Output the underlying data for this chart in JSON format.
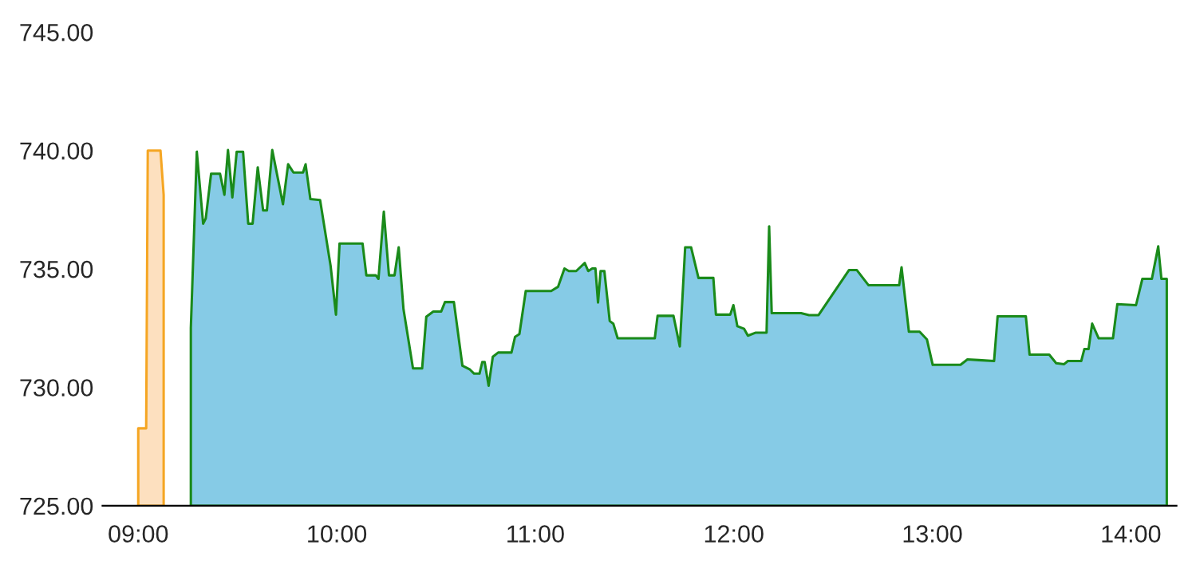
{
  "chart_data": {
    "type": "area",
    "xlim": [
      8.82,
      14.23
    ],
    "ylim": [
      725,
      745
    ],
    "xticks": [
      {
        "value": 9,
        "label": "09:00"
      },
      {
        "value": 10,
        "label": "10:00"
      },
      {
        "value": 11,
        "label": "11:00"
      },
      {
        "value": 12,
        "label": "12:00"
      },
      {
        "value": 13,
        "label": "13:00"
      },
      {
        "value": 14,
        "label": "14:00"
      }
    ],
    "yticks": [
      {
        "value": 725,
        "label": "725.00"
      },
      {
        "value": 730,
        "label": "730.00"
      },
      {
        "value": 735,
        "label": "735.00"
      },
      {
        "value": 740,
        "label": "740.00"
      },
      {
        "value": 745,
        "label": "745.00"
      }
    ],
    "grid": false,
    "legend": false,
    "series": [
      {
        "color": "#f5a623",
        "x": [
          9.0,
          9.04,
          9.048,
          9.112,
          9.128
        ],
        "values": [
          728.27,
          728.27,
          740.0,
          740.0,
          738.13
        ]
      },
      {
        "color": "#1a8a1a",
        "x": [
          9.265,
          9.295,
          9.327,
          9.34,
          9.367,
          9.412,
          9.434,
          9.452,
          9.474,
          9.496,
          9.528,
          9.554,
          9.576,
          9.602,
          9.629,
          9.648,
          9.675,
          9.729,
          9.755,
          9.782,
          9.83,
          9.843,
          9.867,
          9.916,
          9.969,
          9.996,
          10.014,
          10.13,
          10.149,
          10.197,
          10.21,
          10.237,
          10.263,
          10.291,
          10.312,
          10.336,
          10.384,
          10.43,
          10.451,
          10.486,
          10.526,
          10.545,
          10.59,
          10.633,
          10.671,
          10.692,
          10.719,
          10.733,
          10.745,
          10.765,
          10.786,
          10.813,
          10.88,
          10.898,
          10.92,
          10.952,
          11.08,
          11.115,
          11.147,
          11.169,
          11.206,
          11.249,
          11.267,
          11.287,
          11.303,
          11.316,
          11.329,
          11.348,
          11.375,
          11.393,
          11.415,
          11.602,
          11.616,
          11.696,
          11.728,
          11.755,
          11.785,
          11.822,
          11.897,
          11.91,
          11.982,
          11.998,
          12.018,
          12.052,
          12.071,
          12.111,
          12.165,
          12.178,
          12.191,
          12.339,
          12.379,
          12.427,
          12.58,
          12.62,
          12.679,
          12.833,
          12.845,
          12.882,
          12.936,
          12.973,
          13.002,
          13.142,
          13.177,
          13.235,
          13.311,
          13.329,
          13.471,
          13.49,
          13.589,
          13.624,
          13.664,
          13.683,
          13.75,
          13.766,
          13.787,
          13.805,
          13.838,
          13.91,
          13.932,
          14.026,
          14.058,
          14.106,
          14.138,
          14.154,
          14.181
        ],
        "values": [
          732.51,
          739.95,
          736.91,
          737.13,
          739.02,
          739.02,
          738.13,
          740.02,
          738.02,
          739.95,
          739.95,
          736.91,
          736.91,
          739.29,
          737.47,
          737.47,
          740.02,
          737.73,
          739.42,
          739.07,
          739.07,
          739.42,
          737.95,
          737.91,
          735.13,
          733.07,
          736.07,
          736.07,
          734.73,
          734.73,
          734.58,
          737.42,
          734.73,
          734.73,
          735.91,
          733.31,
          730.8,
          730.8,
          732.98,
          733.2,
          733.2,
          733.6,
          733.6,
          730.91,
          730.75,
          730.58,
          730.58,
          731.07,
          731.07,
          730.07,
          731.29,
          731.47,
          731.47,
          732.13,
          732.25,
          734.07,
          734.07,
          734.25,
          735.02,
          734.91,
          734.91,
          735.25,
          734.91,
          735.02,
          735.02,
          733.58,
          734.91,
          734.91,
          732.8,
          732.69,
          732.07,
          732.07,
          733.02,
          733.02,
          731.73,
          735.91,
          735.91,
          734.62,
          734.62,
          733.07,
          733.07,
          733.47,
          732.58,
          732.47,
          732.18,
          732.31,
          732.31,
          736.8,
          733.13,
          733.13,
          733.05,
          733.05,
          734.95,
          734.95,
          734.31,
          734.31,
          735.07,
          732.35,
          732.35,
          732.02,
          730.95,
          730.95,
          731.18,
          731.15,
          731.11,
          733.0,
          733.0,
          731.38,
          731.38,
          731.02,
          730.98,
          731.11,
          731.11,
          731.62,
          731.62,
          732.69,
          732.07,
          732.07,
          733.51,
          733.47,
          734.58,
          734.58,
          735.95,
          734.58,
          734.58
        ]
      }
    ]
  }
}
